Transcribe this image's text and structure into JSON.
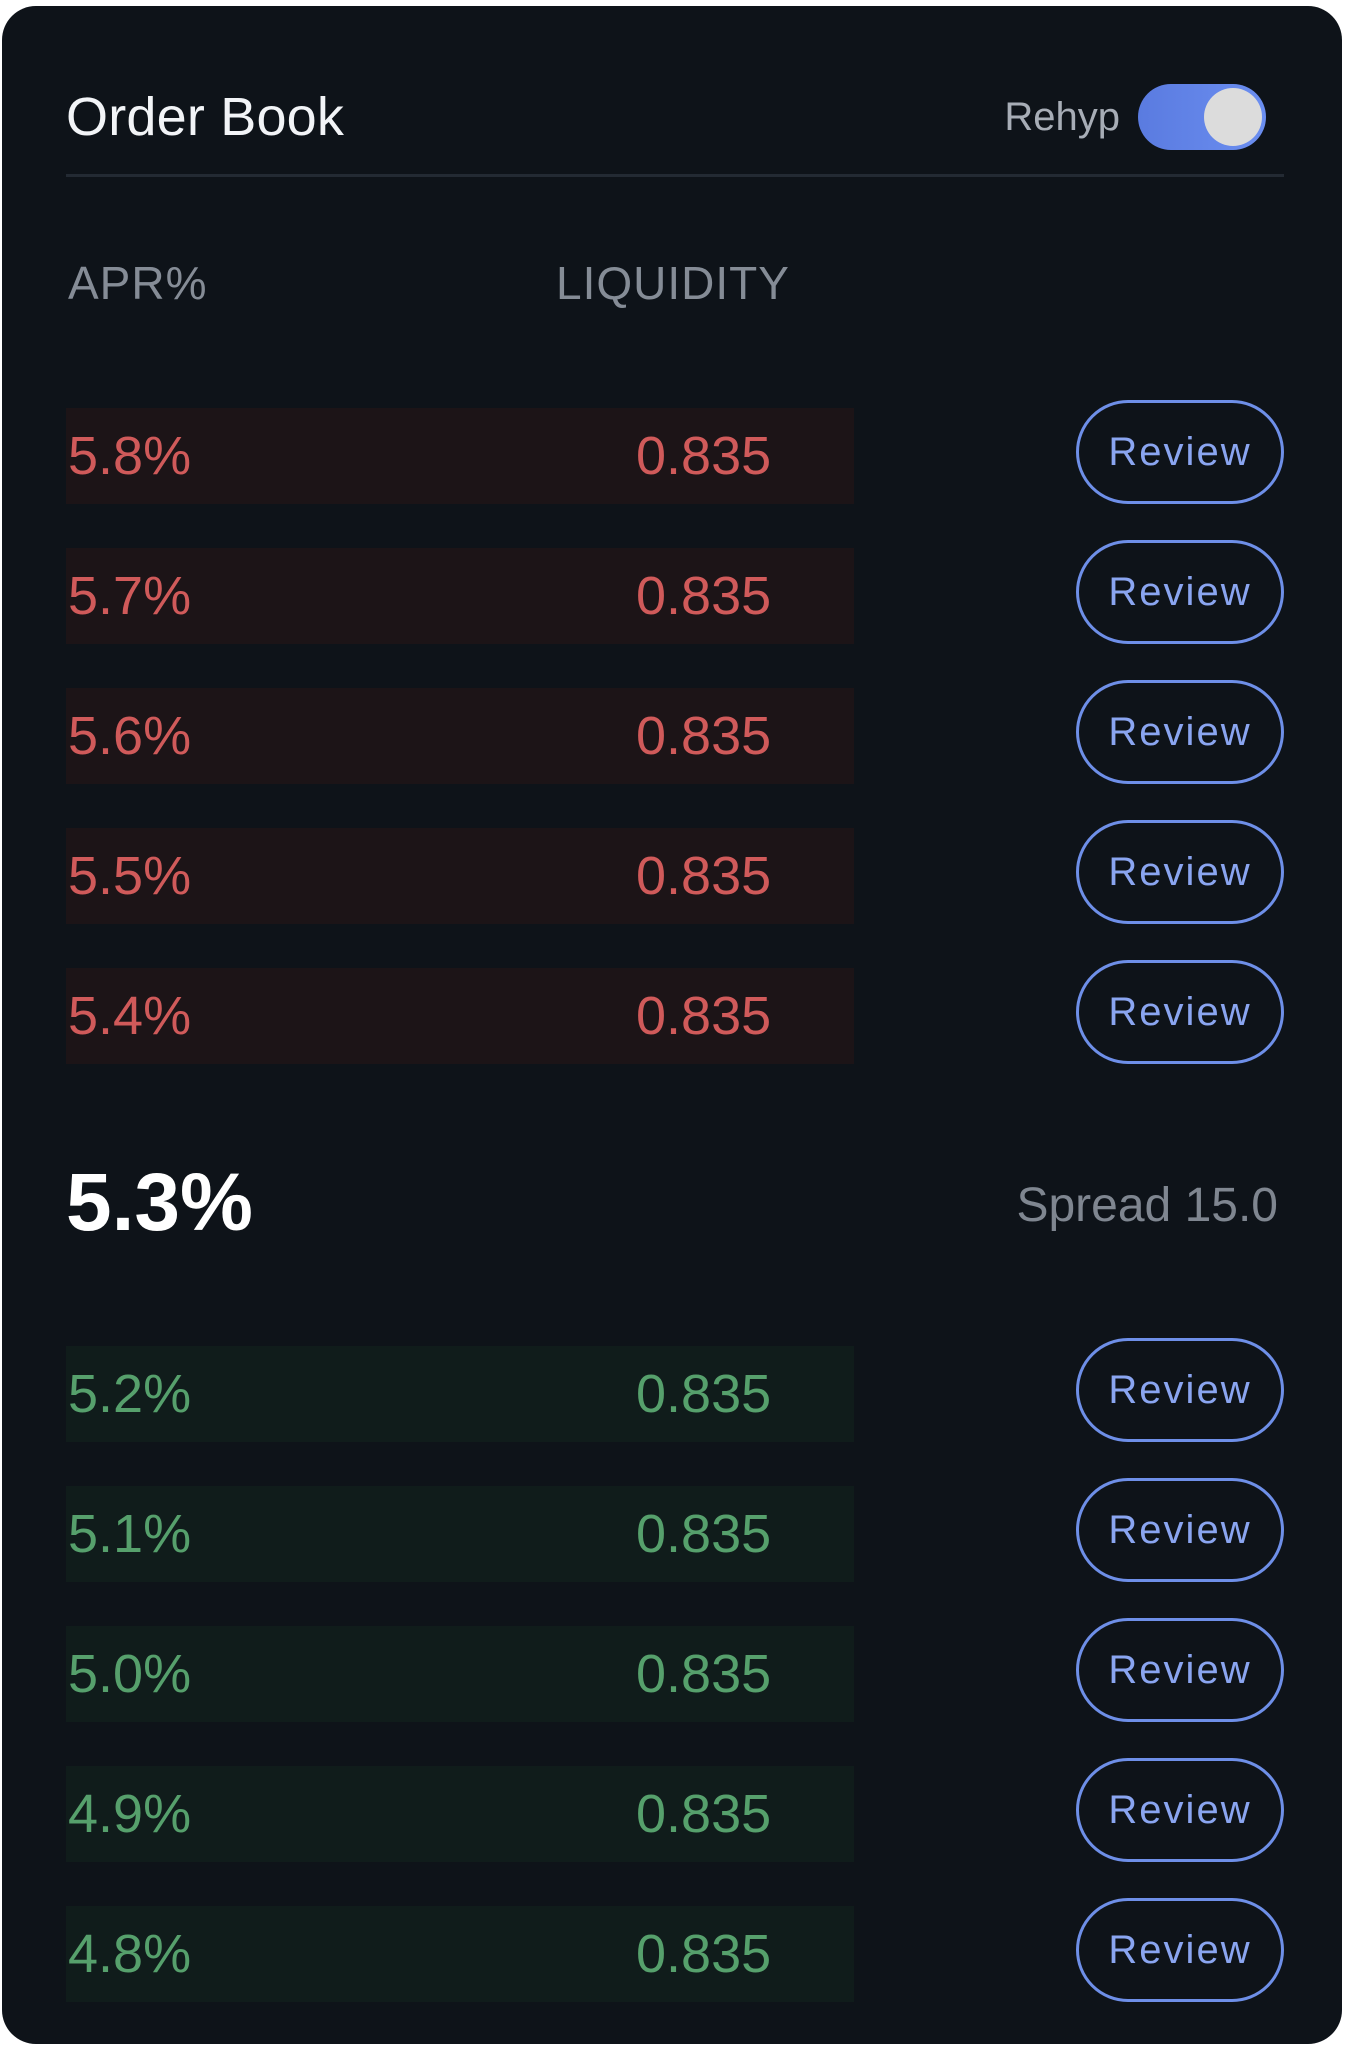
{
  "header": {
    "title": "Order Book",
    "toggle_label": "Rehyp",
    "toggle_on": true
  },
  "columns": {
    "apr": "APR%",
    "liquidity": "LIQUIDITY"
  },
  "asks": [
    {
      "apr": "5.8%",
      "liquidity": "0.835",
      "action": "Review"
    },
    {
      "apr": "5.7%",
      "liquidity": "0.835",
      "action": "Review"
    },
    {
      "apr": "5.6%",
      "liquidity": "0.835",
      "action": "Review"
    },
    {
      "apr": "5.5%",
      "liquidity": "0.835",
      "action": "Review"
    },
    {
      "apr": "5.4%",
      "liquidity": "0.835",
      "action": "Review"
    }
  ],
  "mid": {
    "price": "5.3%",
    "spread": "Spread 15.0"
  },
  "bids": [
    {
      "apr": "5.2%",
      "liquidity": "0.835",
      "action": "Review"
    },
    {
      "apr": "5.1%",
      "liquidity": "0.835",
      "action": "Review"
    },
    {
      "apr": "5.0%",
      "liquidity": "0.835",
      "action": "Review"
    },
    {
      "apr": "4.9%",
      "liquidity": "0.835",
      "action": "Review"
    },
    {
      "apr": "4.8%",
      "liquidity": "0.835",
      "action": "Review"
    }
  ],
  "colors": {
    "ask": "#d05a5a",
    "bid": "#56a06c",
    "accent": "#6e8fe8",
    "background": "#0e1319"
  }
}
